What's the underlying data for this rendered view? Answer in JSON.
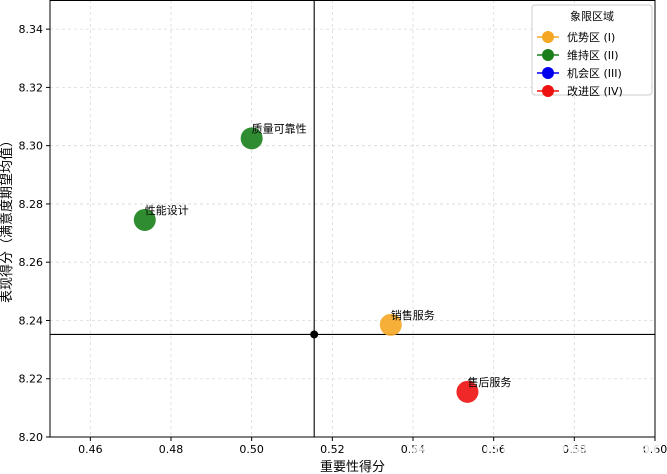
{
  "chart_data": {
    "type": "scatter",
    "title": "",
    "xlabel": "重要性得分",
    "ylabel": "表现得分（满意度期望均值）",
    "xlim": [
      0.45,
      0.6
    ],
    "ylim": [
      8.2,
      8.35
    ],
    "xticks": [
      "0.46",
      "0.48",
      "0.50",
      "0.52",
      "0.54",
      "0.56",
      "0.58",
      "0.60"
    ],
    "yticks": [
      "8.20",
      "8.22",
      "8.24",
      "8.26",
      "8.28",
      "8.30",
      "8.32",
      "8.34"
    ],
    "xtick_values": [
      0.46,
      0.48,
      0.5,
      0.52,
      0.54,
      0.56,
      0.58,
      0.6
    ],
    "ytick_values": [
      8.2,
      8.22,
      8.24,
      8.26,
      8.28,
      8.3,
      8.32,
      8.34
    ],
    "grid": true,
    "reference_lines": {
      "x": 0.5155,
      "y": 8.2352
    },
    "legend": {
      "title": "象限区域",
      "placement": "top-right",
      "entries": [
        {
          "label": "优势区 (I)",
          "color": "#f5a623"
        },
        {
          "label": "维持区 (II)",
          "color": "#1a7f1a"
        },
        {
          "label": "机会区 (III)",
          "color": "#0000ee"
        },
        {
          "label": "改进区 (IV)",
          "color": "#ee1111"
        }
      ]
    },
    "points": [
      {
        "label": "质量可靠性",
        "x": 0.5,
        "y": 8.3025,
        "color": "#1a7f1a"
      },
      {
        "label": "性能设计",
        "x": 0.4735,
        "y": 8.2745,
        "color": "#1a7f1a"
      },
      {
        "label": "销售服务",
        "x": 0.5345,
        "y": 8.2385,
        "color": "#f5a623"
      },
      {
        "label": "售后服务",
        "x": 0.5535,
        "y": 8.2155,
        "color": "#ee1111"
      }
    ]
  },
  "watermark": "掘金技术社区 @ 拓端tecdat"
}
